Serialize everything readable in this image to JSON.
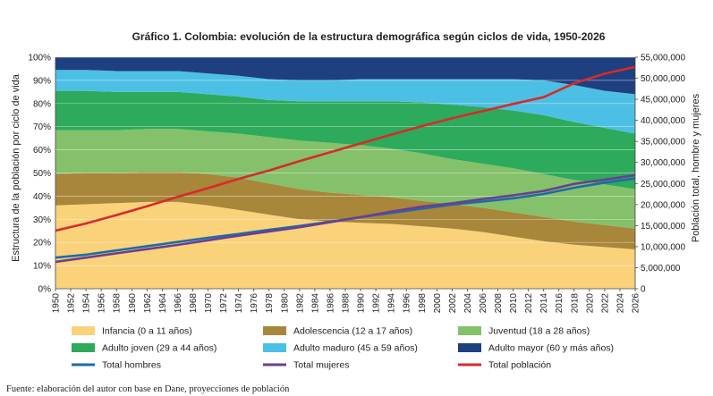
{
  "chart_data": {
    "type": "area",
    "title": "Gráfico 1. Colombia: evolución de la estructura demográfica según ciclos de vida, 1950-2026",
    "ylabel_left": "Estructura de la población por ciclo de vida",
    "ylabel_right": "Población total, hombre y mujeres",
    "source": "Fuente: elaboración del autor con base en Dane, proyecciones de población",
    "x": [
      1950,
      1954,
      1958,
      1962,
      1966,
      1970,
      1974,
      1978,
      1982,
      1986,
      1990,
      1994,
      1998,
      2002,
      2006,
      2010,
      2014,
      2018,
      2022,
      2026
    ],
    "x_ticks": [
      1950,
      1952,
      1954,
      1956,
      1958,
      1960,
      1962,
      1964,
      1966,
      1968,
      1970,
      1972,
      1974,
      1976,
      1978,
      1980,
      1982,
      1984,
      1986,
      1988,
      1990,
      1992,
      1994,
      1996,
      1998,
      2000,
      2002,
      2004,
      2006,
      2008,
      2010,
      2012,
      2014,
      2016,
      2018,
      2020,
      2022,
      2024,
      2026
    ],
    "ylim_left": [
      0,
      100
    ],
    "y_ticks_left": [
      "0%",
      "10%",
      "20%",
      "30%",
      "40%",
      "50%",
      "60%",
      "70%",
      "80%",
      "90%",
      "100%"
    ],
    "ylim_right": [
      0,
      55000000
    ],
    "y_ticks_right": [
      "0",
      "5,000,000",
      "10,000,000",
      "15,000,000",
      "20,000,000",
      "25,000,000",
      "30,000,000",
      "35,000,000",
      "40,000,000",
      "45,000,000",
      "50,000,000",
      "55,000,000"
    ],
    "stacked_series": [
      {
        "name": "Infancia (0 a 11 años)",
        "color": "#F9D27A",
        "values": [
          36,
          36.5,
          37,
          37.5,
          37.5,
          36,
          34,
          32,
          30,
          29,
          28.5,
          28,
          27,
          26,
          24.5,
          22.5,
          20.5,
          19,
          18,
          17
        ]
      },
      {
        "name": "Adolescencia (12 a 17 años)",
        "color": "#A8863A",
        "values": [
          13.5,
          13.5,
          13,
          13,
          13,
          13.5,
          14,
          13.5,
          13,
          12.5,
          12,
          11.5,
          11,
          10.5,
          10.5,
          10.5,
          10.5,
          10,
          9.5,
          9
        ]
      },
      {
        "name": "Juventud (18 a 28 años)",
        "color": "#84C16A",
        "values": [
          19,
          18.5,
          18.5,
          18.5,
          18.5,
          18.5,
          19,
          20,
          21,
          21.5,
          21.5,
          21,
          20.5,
          19.5,
          19,
          19,
          18.5,
          18,
          17.5,
          17
        ]
      },
      {
        "name": "Adulto joven (29 a 44 años)",
        "color": "#2DAA5C",
        "values": [
          17,
          17,
          16.5,
          16,
          16,
          16,
          16,
          16,
          17,
          18,
          19,
          20.5,
          22,
          23.5,
          24.5,
          25,
          25.5,
          25,
          24.5,
          24
        ]
      },
      {
        "name": "Adulto maduro (45 a 59 años)",
        "color": "#4CC0E4",
        "values": [
          9,
          9,
          9,
          9,
          9,
          9,
          9,
          9,
          9,
          9,
          9.5,
          9.5,
          10,
          11,
          12,
          13.5,
          15,
          16,
          16,
          17
        ]
      },
      {
        "name": "Adulto mayor (60 y más años)",
        "color": "#1E3F80",
        "values": [
          5.5,
          5.5,
          6,
          6,
          6,
          7,
          8,
          9.5,
          10,
          10,
          9.5,
          9.5,
          9.5,
          9.5,
          9.5,
          9.5,
          10,
          12,
          14.5,
          16
        ]
      }
    ],
    "line_series": [
      {
        "name": "Total hombres",
        "color": "#1F6BA8",
        "values": [
          7400000,
          8100000,
          9100000,
          10100000,
          11100000,
          12100000,
          13000000,
          14000000,
          14900000,
          15900000,
          17000000,
          18000000,
          19000000,
          20000000,
          20700000,
          21500000,
          22500000,
          24000000,
          25200000,
          26200000
        ]
      },
      {
        "name": "Total mujeres",
        "color": "#6B3F8E",
        "values": [
          6400000,
          7400000,
          8400000,
          9400000,
          10400000,
          11500000,
          12600000,
          13600000,
          14600000,
          15800000,
          17000000,
          18300000,
          19500000,
          20300000,
          21300000,
          22200000,
          23200000,
          24900000,
          25900000,
          27000000
        ]
      },
      {
        "name": "Total población",
        "color": "#D62B2B",
        "values": [
          13800000,
          15500000,
          17500000,
          19600000,
          21800000,
          23900000,
          26100000,
          28100000,
          30300000,
          32400000,
          34500000,
          36600000,
          38600000,
          40500000,
          42200000,
          43900000,
          45500000,
          48800000,
          51100000,
          52700000
        ]
      }
    ],
    "grid": true,
    "legend_position": "bottom"
  }
}
